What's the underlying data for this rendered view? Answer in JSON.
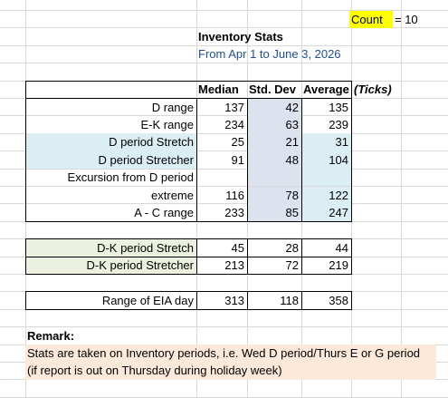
{
  "count": {
    "label": "Count",
    "value": "= 10"
  },
  "title": "Inventory Stats",
  "subtitle": "From Apr 1 to June 3, 2026",
  "headers": {
    "median": "Median",
    "std": "Std. Dev",
    "avg": "Average",
    "unit": "(Ticks)"
  },
  "groups": [
    [
      {
        "label": "D range",
        "median": 137,
        "std": 42,
        "avg": 135
      },
      {
        "label": "E-K range",
        "median": 234,
        "std": 63,
        "avg": 239
      },
      {
        "label": "D period Stretch",
        "median": 25,
        "std": 21,
        "avg": 31
      },
      {
        "label": "D period Stretcher",
        "median": 91,
        "std": 48,
        "avg": 104
      },
      {
        "label": "Excursion from D period"
      },
      {
        "label": "extreme",
        "median": 116,
        "std": 78,
        "avg": 122
      },
      {
        "label": "A - C range",
        "median": 233,
        "std": 85,
        "avg": 247
      }
    ],
    [
      {
        "label": "D-K period Stretch",
        "median": 45,
        "std": 28,
        "avg": 44
      },
      {
        "label": "D-K period Stretcher",
        "median": 213,
        "std": 72,
        "avg": 219
      }
    ],
    [
      {
        "label": "Range of EIA day",
        "median": 313,
        "std": 118,
        "avg": 358
      }
    ]
  ],
  "remark": {
    "title": "Remark:",
    "text": "Stats are taken on Inventory periods, i.e. Wed D period/Thurs E or G period (if report is out on Thursday during holiday week)"
  }
}
